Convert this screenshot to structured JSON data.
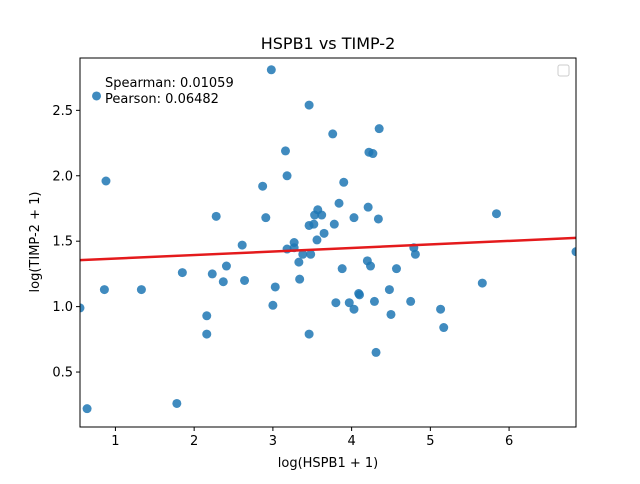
{
  "chart_data": {
    "type": "scatter",
    "title": "HSPB1 vs TIMP-2",
    "xlabel": "log(HSPB1 + 1)",
    "ylabel": "log(TIMP-2 + 1)",
    "xlim": [
      0.55,
      6.85
    ],
    "ylim": [
      0.08,
      2.9
    ],
    "xticks": [
      1,
      2,
      3,
      4,
      5,
      6
    ],
    "xtick_labels": [
      "1",
      "2",
      "3",
      "4",
      "5",
      "6"
    ],
    "yticks": [
      0.5,
      1.0,
      1.5,
      2.0,
      2.5
    ],
    "ytick_labels": [
      "0.5",
      "1.0",
      "1.5",
      "2.0",
      "2.5"
    ],
    "grid": false,
    "legend": "top-right (empty box)",
    "annotations": [
      "Spearman: 0.01059",
      "Pearson: 0.06482"
    ],
    "point_color": "#1f77b4",
    "line_color": "#e41a1c",
    "fit_line": {
      "x": [
        0.55,
        6.85
      ],
      "y": [
        1.355,
        1.525
      ]
    },
    "points": [
      {
        "x": 0.55,
        "y": 0.99
      },
      {
        "x": 0.64,
        "y": 0.22
      },
      {
        "x": 0.76,
        "y": 2.61
      },
      {
        "x": 0.86,
        "y": 1.13
      },
      {
        "x": 0.88,
        "y": 1.96
      },
      {
        "x": 1.33,
        "y": 1.13
      },
      {
        "x": 1.78,
        "y": 0.26
      },
      {
        "x": 1.85,
        "y": 1.26
      },
      {
        "x": 2.16,
        "y": 0.79
      },
      {
        "x": 2.16,
        "y": 0.93
      },
      {
        "x": 2.23,
        "y": 1.25
      },
      {
        "x": 2.28,
        "y": 1.69
      },
      {
        "x": 2.37,
        "y": 1.19
      },
      {
        "x": 2.41,
        "y": 1.31
      },
      {
        "x": 2.61,
        "y": 1.47
      },
      {
        "x": 2.64,
        "y": 1.2
      },
      {
        "x": 2.87,
        "y": 1.92
      },
      {
        "x": 2.91,
        "y": 1.68
      },
      {
        "x": 2.98,
        "y": 2.81
      },
      {
        "x": 3.0,
        "y": 1.01
      },
      {
        "x": 3.03,
        "y": 1.15
      },
      {
        "x": 3.16,
        "y": 2.19
      },
      {
        "x": 3.18,
        "y": 2.0
      },
      {
        "x": 3.18,
        "y": 1.44
      },
      {
        "x": 3.27,
        "y": 1.49
      },
      {
        "x": 3.27,
        "y": 1.45
      },
      {
        "x": 3.33,
        "y": 1.34
      },
      {
        "x": 3.34,
        "y": 1.21
      },
      {
        "x": 3.38,
        "y": 1.4
      },
      {
        "x": 3.46,
        "y": 2.54
      },
      {
        "x": 3.46,
        "y": 1.62
      },
      {
        "x": 3.46,
        "y": 0.79
      },
      {
        "x": 3.48,
        "y": 1.4
      },
      {
        "x": 3.52,
        "y": 1.63
      },
      {
        "x": 3.53,
        "y": 1.7
      },
      {
        "x": 3.56,
        "y": 1.51
      },
      {
        "x": 3.57,
        "y": 1.74
      },
      {
        "x": 3.62,
        "y": 1.7
      },
      {
        "x": 3.65,
        "y": 1.56
      },
      {
        "x": 3.76,
        "y": 2.32
      },
      {
        "x": 3.78,
        "y": 1.63
      },
      {
        "x": 3.8,
        "y": 1.03
      },
      {
        "x": 3.84,
        "y": 1.79
      },
      {
        "x": 3.88,
        "y": 1.29
      },
      {
        "x": 3.9,
        "y": 1.95
      },
      {
        "x": 3.97,
        "y": 1.03
      },
      {
        "x": 4.03,
        "y": 0.98
      },
      {
        "x": 4.03,
        "y": 1.68
      },
      {
        "x": 4.09,
        "y": 1.1
      },
      {
        "x": 4.1,
        "y": 1.09
      },
      {
        "x": 4.2,
        "y": 1.35
      },
      {
        "x": 4.21,
        "y": 1.76
      },
      {
        "x": 4.22,
        "y": 2.18
      },
      {
        "x": 4.24,
        "y": 1.31
      },
      {
        "x": 4.27,
        "y": 2.17
      },
      {
        "x": 4.29,
        "y": 1.04
      },
      {
        "x": 4.31,
        "y": 0.65
      },
      {
        "x": 4.34,
        "y": 1.67
      },
      {
        "x": 4.35,
        "y": 2.36
      },
      {
        "x": 4.48,
        "y": 1.13
      },
      {
        "x": 4.5,
        "y": 0.94
      },
      {
        "x": 4.57,
        "y": 1.29
      },
      {
        "x": 4.75,
        "y": 1.04
      },
      {
        "x": 4.79,
        "y": 1.45
      },
      {
        "x": 4.81,
        "y": 1.4
      },
      {
        "x": 5.13,
        "y": 0.98
      },
      {
        "x": 5.17,
        "y": 0.84
      },
      {
        "x": 5.66,
        "y": 1.18
      },
      {
        "x": 5.84,
        "y": 1.71
      },
      {
        "x": 6.85,
        "y": 1.42
      }
    ]
  }
}
